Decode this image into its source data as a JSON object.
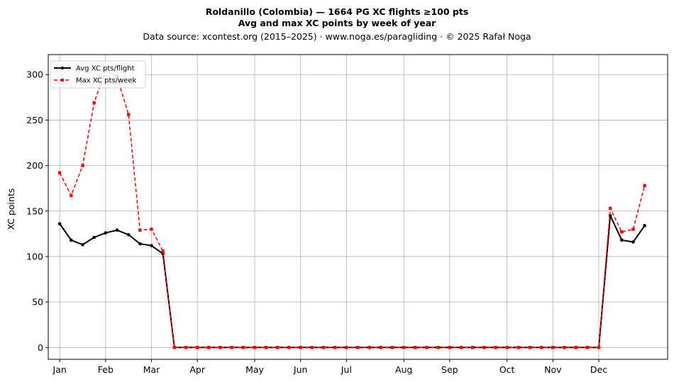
{
  "chart_data": {
    "type": "line",
    "title_line1": "Roldanillo (Colombia)  —  1664 PG XC flights ≥100 pts",
    "title_line2": "Avg and max XC points by week of year",
    "subtitle": "Data source: xcontest.org (2015–2025)  ·  www.noga.es/paragliding  ·  © 2025 Rafał Noga",
    "ylabel": "XC points",
    "xlabel": "",
    "xlim": [
      0,
      54
    ],
    "ylim": [
      -13,
      322
    ],
    "grid": true,
    "legend_position": "top-left",
    "x_ticks": [
      {
        "x": 1,
        "label": "Jan"
      },
      {
        "x": 5,
        "label": "Feb"
      },
      {
        "x": 9,
        "label": "Mar"
      },
      {
        "x": 13,
        "label": "Apr"
      },
      {
        "x": 18,
        "label": "May"
      },
      {
        "x": 22,
        "label": "Jun"
      },
      {
        "x": 26,
        "label": "Jul"
      },
      {
        "x": 31,
        "label": "Aug"
      },
      {
        "x": 35,
        "label": "Sep"
      },
      {
        "x": 40,
        "label": "Oct"
      },
      {
        "x": 44,
        "label": "Nov"
      },
      {
        "x": 48,
        "label": "Dec"
      }
    ],
    "y_ticks": [
      0,
      50,
      100,
      150,
      200,
      250,
      300
    ],
    "x": [
      1,
      2,
      3,
      4,
      5,
      6,
      7,
      8,
      9,
      10,
      11,
      12,
      13,
      14,
      15,
      16,
      17,
      18,
      19,
      20,
      21,
      22,
      23,
      24,
      25,
      26,
      27,
      28,
      29,
      30,
      31,
      32,
      33,
      34,
      35,
      36,
      37,
      38,
      39,
      40,
      41,
      42,
      43,
      44,
      45,
      46,
      47,
      48,
      49,
      50,
      51,
      52
    ],
    "series": [
      {
        "name": "Avg XC pts/flight",
        "color": "#000000",
        "style": "solid",
        "marker": "circle",
        "values": [
          136,
          118,
          113,
          121,
          126,
          129,
          124,
          114,
          112,
          103,
          0,
          0,
          0,
          0,
          0,
          0,
          0,
          0,
          0,
          0,
          0,
          0,
          0,
          0,
          0,
          0,
          0,
          0,
          0,
          0,
          0,
          0,
          0,
          0,
          0,
          0,
          0,
          0,
          0,
          0,
          0,
          0,
          0,
          0,
          0,
          0,
          0,
          0,
          145,
          118,
          116,
          134
        ]
      },
      {
        "name": "Max XC pts/week",
        "color": "#ff0000",
        "style": "dashed",
        "marker": "square",
        "values": [
          192,
          167,
          200,
          269,
          305,
          298,
          256,
          129,
          130,
          106,
          0,
          0,
          0,
          0,
          0,
          0,
          0,
          0,
          0,
          0,
          0,
          0,
          0,
          0,
          0,
          0,
          0,
          0,
          0,
          0,
          0,
          0,
          0,
          0,
          0,
          0,
          0,
          0,
          0,
          0,
          0,
          0,
          0,
          0,
          0,
          0,
          0,
          0,
          153,
          127,
          130,
          178
        ]
      }
    ]
  }
}
